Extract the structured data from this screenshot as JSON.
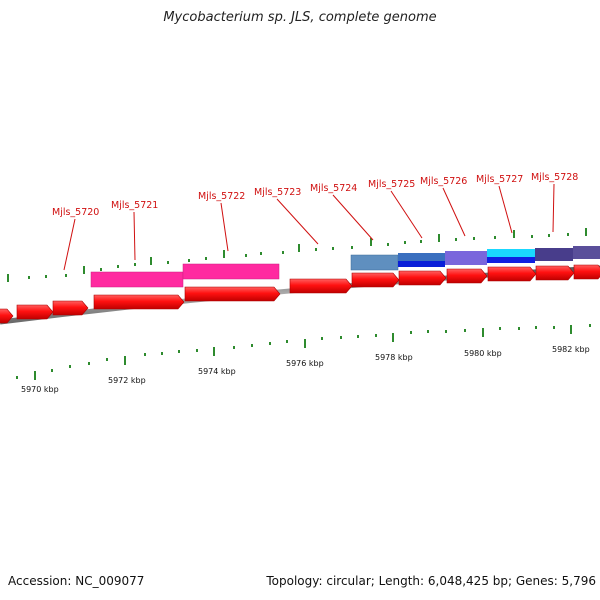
{
  "title": "Mycobacterium sp. JLS, complete genome",
  "footer": {
    "accession": "Accession: NC_009077",
    "stats": "Topology: circular; Length: 6,048,425 bp; Genes: 5,796"
  },
  "colors": {
    "cds": "#ff1a1a",
    "backbone": "#8a8a8a",
    "tick": "#2e8b2e",
    "label": "#d01010"
  },
  "gene_labels": [
    "Mjls_5720",
    "Mjls_5721",
    "Mjls_5722",
    "Mjls_5723",
    "Mjls_5724",
    "Mjls_5725",
    "Mjls_5726",
    "Mjls_5727",
    "Mjls_5728"
  ],
  "kbp_labels": [
    "5970 kbp",
    "5972 kbp",
    "5974 kbp",
    "5976 kbp",
    "5978 kbp",
    "5980 kbp",
    "5982 kbp"
  ],
  "feature_colors": [
    "#ff2aa0",
    "#ff2aa0",
    "#5f8fbf",
    "#3a6fbf",
    "#6a5acd",
    "#1ad8ff",
    "#483d8b",
    "#5a4f9a"
  ],
  "second_feature_colors": [
    "#ff2aa0",
    "#ff2aa0",
    "#2f63b8",
    "#0a1fd8",
    "#8370e0",
    "#1020e0",
    "#3a2f8a",
    "#3a2f8a"
  ]
}
